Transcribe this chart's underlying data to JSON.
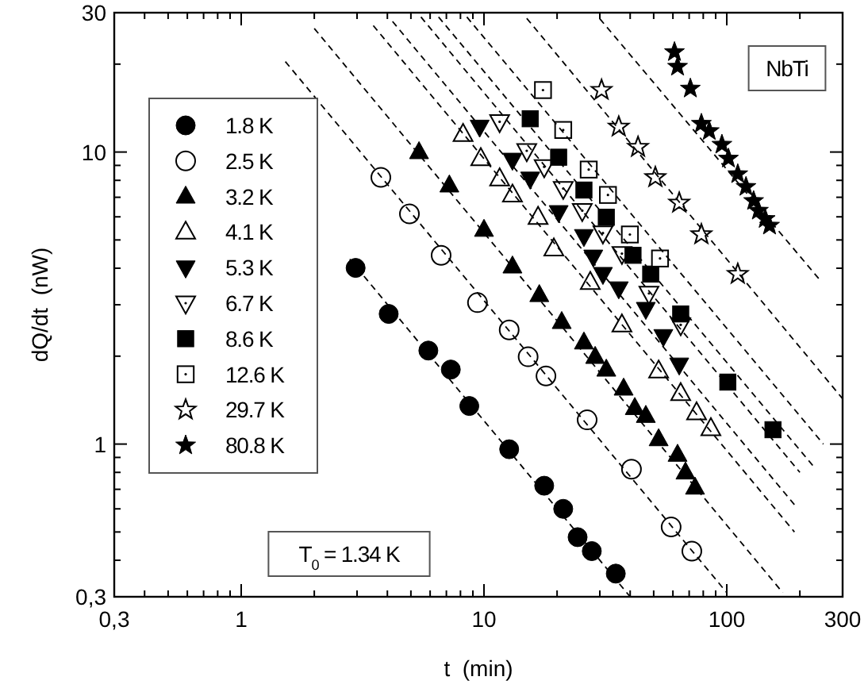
{
  "chart_data": {
    "type": "scatter",
    "xlabel": "t  (min)",
    "ylabel": "dQ/dt  (nW)",
    "log": "xy",
    "xlim": [
      0.3,
      300
    ],
    "ylim": [
      0.3,
      30
    ],
    "xticks": [
      {
        "value": 0.3,
        "label": "0,3"
      },
      1,
      10,
      100,
      300
    ],
    "yticks": [
      {
        "value": 0.3,
        "label": "0,3"
      },
      1,
      10,
      30
    ],
    "grid": false,
    "legend": "left",
    "annotations": [
      "NbTi",
      "T$_{0}$ = 1.34 K"
    ],
    "series": [
      {
        "name": "1.8 K",
        "color": "#000000",
        "marker": "circle",
        "x": [
          2.96,
          4.05,
          5.9,
          7.3,
          8.7,
          12.7,
          17.7,
          21.2,
          24.3,
          27.8,
          34.9
        ],
        "values": [
          4.01,
          2.79,
          2.09,
          1.8,
          1.35,
          0.96,
          0.72,
          0.6,
          0.48,
          0.43,
          0.36
        ]
      },
      {
        "name": "2.5 K",
        "color": "#000000",
        "marker": "circle-open",
        "x": [
          3.76,
          4.93,
          6.66,
          9.4,
          12.7,
          15.2,
          18.0,
          26.6,
          40.5,
          59,
          71.8
        ],
        "values": [
          8.19,
          6.14,
          4.43,
          3.05,
          2.46,
          1.99,
          1.71,
          1.21,
          0.82,
          0.52,
          0.43
        ]
      },
      {
        "name": "3.2 K",
        "color": "#000000",
        "marker": "triangle",
        "x": [
          5.4,
          7.2,
          10.0,
          13.1,
          16.9,
          20.9,
          25.8,
          28.7,
          31.9,
          37.6,
          41.8,
          46.4,
          52.4,
          62.7,
          67.6,
          74.0
        ],
        "values": [
          10.0,
          7.69,
          5.42,
          4.06,
          3.24,
          2.62,
          2.23,
          1.99,
          1.8,
          1.55,
          1.33,
          1.25,
          1.04,
          0.92,
          0.8,
          0.71
        ]
      },
      {
        "name": "4.1 K",
        "color": "#000000",
        "marker": "triangle-open",
        "x": [
          8.2,
          9.7,
          11.6,
          13.1,
          16.7,
          19.4,
          27.4,
          37.0,
          52.4,
          64.6,
          75.1,
          86.0
        ],
        "values": [
          11.5,
          9.5,
          8.1,
          7.13,
          5.98,
          4.66,
          3.58,
          2.56,
          1.78,
          1.49,
          1.28,
          1.13
        ]
      },
      {
        "name": "5.3 K",
        "color": "#000000",
        "marker": "triangle-down",
        "x": [
          9.6,
          13.1,
          15.5,
          20.3,
          25.8,
          28.2,
          30.9,
          35.9,
          46.4,
          54.8,
          63.7
        ],
        "values": [
          12.2,
          9.4,
          8.1,
          6.22,
          5.15,
          4.38,
          3.82,
          3.41,
          2.9,
          2.34,
          1.87
        ]
      },
      {
        "name": "6.7 K",
        "color": "#000000",
        "marker": "triangle-down-open",
        "x": [
          11.6,
          15.0,
          17.7,
          21.2,
          25.4,
          30.9,
          37.0,
          47.8,
          64.6
        ],
        "values": [
          12.7,
          10.1,
          8.9,
          7.5,
          6.3,
          5.28,
          4.49,
          3.28,
          2.56
        ]
      },
      {
        "name": "8.6 K",
        "color": "#000000",
        "marker": "square",
        "x": [
          15.5,
          20.3,
          25.8,
          31.9,
          41.1,
          48.6,
          64.6,
          101,
          155
        ],
        "values": [
          13.0,
          9.6,
          7.41,
          5.98,
          4.43,
          3.82,
          2.79,
          1.63,
          1.12
        ]
      },
      {
        "name": "12.6 K",
        "color": "#000000",
        "marker": "square-open",
        "x": [
          17.5,
          21.2,
          27.0,
          32.4,
          39.9,
          53.1
        ],
        "values": [
          16.3,
          11.9,
          8.71,
          7.13,
          5.22,
          4.32
        ]
      },
      {
        "name": "29.7 K",
        "color": "#000000",
        "marker": "star-open",
        "x": [
          30.5,
          35.9,
          43.1,
          50.8,
          63.7,
          78.6,
          111
        ],
        "values": [
          16.3,
          12.2,
          10.4,
          8.19,
          6.7,
          5.22,
          3.82
        ]
      },
      {
        "name": "80.8 K",
        "color": "#000000",
        "marker": "star",
        "x": [
          60.9,
          62.7,
          70.8,
          78.6,
          84.7,
          95.5,
          101.6,
          111,
          120,
          129,
          135,
          144,
          150
        ],
        "values": [
          22.0,
          19.6,
          16.5,
          12.5,
          11.8,
          10.6,
          9.5,
          8.4,
          7.6,
          6.8,
          6.3,
          5.9,
          5.6
        ]
      },
      {
        "type": "line",
        "color": "#000000",
        "line_style": "dashed",
        "x": [
          2.8,
          40
        ],
        "values": [
          4.3,
          0.3
        ]
      },
      {
        "type": "line",
        "color": "#000000",
        "line_style": "dashed",
        "x": [
          1.52,
          100
        ],
        "values": [
          20.4,
          0.31
        ]
      },
      {
        "type": "line",
        "color": "#000000",
        "line_style": "dashed",
        "x": [
          2,
          170
        ],
        "values": [
          26.5,
          0.31
        ]
      },
      {
        "type": "line",
        "color": "#000000",
        "line_style": "dashed",
        "x": [
          3.5,
          190
        ],
        "values": [
          27.1,
          0.5
        ]
      },
      {
        "type": "line",
        "color": "#000000",
        "line_style": "dashed",
        "x": [
          4.2,
          190
        ],
        "values": [
          28,
          0.62
        ]
      },
      {
        "type": "line",
        "color": "#000000",
        "line_style": "dashed",
        "x": [
          5.5,
          200
        ],
        "values": [
          29,
          0.8
        ]
      },
      {
        "type": "line",
        "color": "#000000",
        "line_style": "dashed",
        "x": [
          6.5,
          230
        ],
        "values": [
          29,
          0.83
        ]
      },
      {
        "type": "line",
        "color": "#000000",
        "line_style": "dashed",
        "x": [
          8.5,
          250
        ],
        "values": [
          29,
          1.0
        ]
      },
      {
        "type": "line",
        "color": "#000000",
        "line_style": "dashed",
        "x": [
          15,
          300
        ],
        "values": [
          28.7,
          1.43
        ]
      },
      {
        "type": "line",
        "color": "#000000",
        "line_style": "dashed",
        "x": [
          30,
          243
        ],
        "values": [
          28.6,
          3.63
        ]
      }
    ]
  }
}
